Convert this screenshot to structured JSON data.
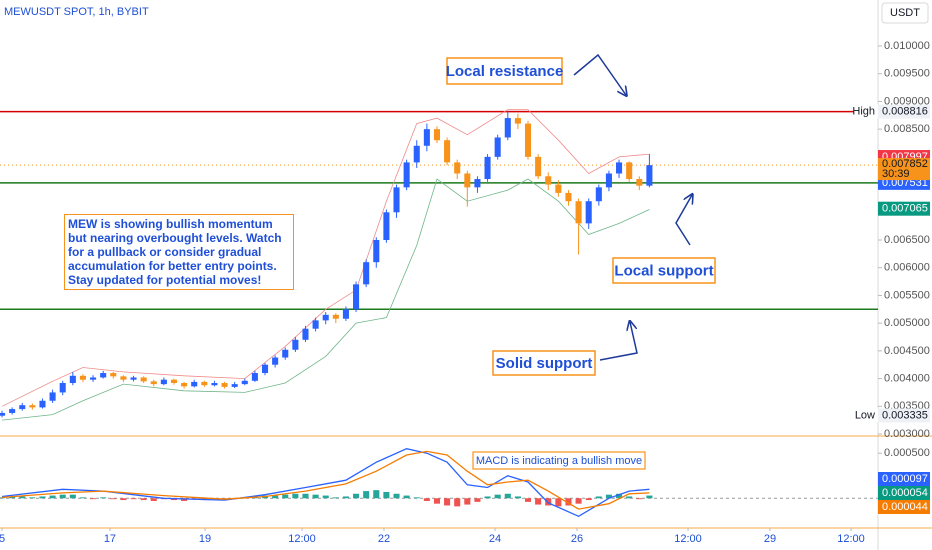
{
  "chart_data": {
    "type": "candlestick",
    "title": "MEWUSDT SPOT, 1h, BYBIT",
    "currency": "USDT",
    "up_color": "#2962ff",
    "down_color": "#f7931a",
    "xlim": [
      -0.2,
      86.6
    ],
    "xticks": [
      {
        "value": 0,
        "label": "5"
      },
      {
        "value": 10.67,
        "label": "17"
      },
      {
        "value": 20.07,
        "label": "19"
      },
      {
        "value": 29.66,
        "label": "12:00"
      },
      {
        "value": 37.76,
        "label": "22"
      },
      {
        "value": 48.74,
        "label": "24"
      },
      {
        "value": 56.84,
        "label": "26"
      },
      {
        "value": 67.82,
        "label": "12:00"
      },
      {
        "value": 75.92,
        "label": "29"
      },
      {
        "value": 83.93,
        "label": "12:00"
      }
    ],
    "ylim": [
      0.002964,
      0.01083
    ],
    "yticks": [
      {
        "value": 0.01,
        "label": "0.010000"
      },
      {
        "value": 0.0095,
        "label": "0.009500"
      },
      {
        "value": 0.009,
        "label": "0.009000"
      },
      {
        "value": 0.0085,
        "label": "0.008500"
      },
      {
        "value": 0.008,
        "label": "0.008000"
      },
      {
        "value": 0.0075,
        "label": "0.007500"
      },
      {
        "value": 0.007,
        "label": "0.007000"
      },
      {
        "value": 0.0065,
        "label": "0.006500"
      },
      {
        "value": 0.006,
        "label": "0.006000"
      },
      {
        "value": 0.0055,
        "label": "0.005500"
      },
      {
        "value": 0.005,
        "label": "0.005000"
      },
      {
        "value": 0.0045,
        "label": "0.004500"
      },
      {
        "value": 0.004,
        "label": "0.004000"
      },
      {
        "value": 0.0035,
        "label": "0.003500"
      },
      {
        "value": 0.003,
        "label": "0.003000"
      }
    ],
    "candles": [
      [
        0.00333,
        0.00342,
        0.0033,
        0.00338
      ],
      [
        0.00338,
        0.00348,
        0.00335,
        0.00345
      ],
      [
        0.00345,
        0.00356,
        0.00342,
        0.00352
      ],
      [
        0.00352,
        0.00355,
        0.00344,
        0.00348
      ],
      [
        0.00348,
        0.00364,
        0.00346,
        0.0036
      ],
      [
        0.0036,
        0.0038,
        0.00356,
        0.00375
      ],
      [
        0.00375,
        0.00396,
        0.0037,
        0.00392
      ],
      [
        0.00392,
        0.00412,
        0.00388,
        0.00405
      ],
      [
        0.00405,
        0.00408,
        0.00394,
        0.00398
      ],
      [
        0.00398,
        0.00406,
        0.00394,
        0.00402
      ],
      [
        0.00402,
        0.00414,
        0.004,
        0.0041
      ],
      [
        0.0041,
        0.00412,
        0.004,
        0.00404
      ],
      [
        0.00404,
        0.00406,
        0.00394,
        0.00398
      ],
      [
        0.00398,
        0.00405,
        0.00395,
        0.00402
      ],
      [
        0.00402,
        0.00404,
        0.00392,
        0.00395
      ],
      [
        0.00395,
        0.00398,
        0.00386,
        0.0039
      ],
      [
        0.0039,
        0.00402,
        0.00388,
        0.00398
      ],
      [
        0.00398,
        0.004,
        0.00389,
        0.00392
      ],
      [
        0.00392,
        0.00394,
        0.00382,
        0.00386
      ],
      [
        0.00386,
        0.00398,
        0.00384,
        0.00394
      ],
      [
        0.00394,
        0.00396,
        0.00385,
        0.00388
      ],
      [
        0.00388,
        0.00396,
        0.00386,
        0.00392
      ],
      [
        0.00392,
        0.00394,
        0.00382,
        0.00385
      ],
      [
        0.00385,
        0.00394,
        0.00383,
        0.0039
      ],
      [
        0.0039,
        0.004,
        0.00388,
        0.00396
      ],
      [
        0.00396,
        0.00414,
        0.00394,
        0.0041
      ],
      [
        0.0041,
        0.00428,
        0.00406,
        0.00425
      ],
      [
        0.00425,
        0.00442,
        0.0042,
        0.00438
      ],
      [
        0.00438,
        0.00456,
        0.00434,
        0.00452
      ],
      [
        0.00452,
        0.00475,
        0.00448,
        0.0047
      ],
      [
        0.0047,
        0.00495,
        0.00466,
        0.0049
      ],
      [
        0.0049,
        0.0051,
        0.00485,
        0.00505
      ],
      [
        0.00505,
        0.0052,
        0.00498,
        0.00515
      ],
      [
        0.00515,
        0.00518,
        0.005,
        0.00508
      ],
      [
        0.00508,
        0.0053,
        0.00504,
        0.00525
      ],
      [
        0.00525,
        0.00575,
        0.0052,
        0.0057
      ],
      [
        0.0057,
        0.00615,
        0.00565,
        0.0061
      ],
      [
        0.0061,
        0.00655,
        0.006,
        0.0065
      ],
      [
        0.0065,
        0.00705,
        0.00645,
        0.007
      ],
      [
        0.007,
        0.0075,
        0.0069,
        0.00745
      ],
      [
        0.00745,
        0.00795,
        0.0074,
        0.0079
      ],
      [
        0.0079,
        0.0083,
        0.0078,
        0.0082
      ],
      [
        0.0082,
        0.0086,
        0.0081,
        0.0085
      ],
      [
        0.0085,
        0.00855,
        0.00825,
        0.0083
      ],
      [
        0.0083,
        0.00835,
        0.00785,
        0.0079
      ],
      [
        0.0079,
        0.00795,
        0.0076,
        0.0077
      ],
      [
        0.0077,
        0.00775,
        0.0071,
        0.00745
      ],
      [
        0.00745,
        0.00765,
        0.00735,
        0.0076
      ],
      [
        0.0076,
        0.00805,
        0.00755,
        0.008
      ],
      [
        0.008,
        0.0084,
        0.00795,
        0.00835
      ],
      [
        0.00835,
        0.00882,
        0.0083,
        0.0087
      ],
      [
        0.0087,
        0.00878,
        0.0085,
        0.0086
      ],
      [
        0.0086,
        0.00865,
        0.00795,
        0.008
      ],
      [
        0.008,
        0.00805,
        0.0076,
        0.00765
      ],
      [
        0.00765,
        0.00772,
        0.0074,
        0.0075
      ],
      [
        0.0075,
        0.00758,
        0.00728,
        0.00735
      ],
      [
        0.00735,
        0.0074,
        0.00712,
        0.0072
      ],
      [
        0.0072,
        0.00725,
        0.00624,
        0.0068
      ],
      [
        0.0068,
        0.00725,
        0.0067,
        0.0072
      ],
      [
        0.0072,
        0.0075,
        0.00712,
        0.00745
      ],
      [
        0.00745,
        0.00775,
        0.00738,
        0.0077
      ],
      [
        0.0077,
        0.00795,
        0.00762,
        0.0079
      ],
      [
        0.0079,
        0.00792,
        0.00755,
        0.0076
      ],
      [
        0.0076,
        0.00765,
        0.0074,
        0.00748
      ],
      [
        0.00748,
        0.00805,
        0.00745,
        0.00785
      ]
    ],
    "bands": [
      {
        "color": "#f08a8a",
        "x": [
          0,
          5,
          8,
          12,
          18,
          24,
          28,
          32,
          35,
          38,
          41,
          43,
          46,
          50,
          52,
          55,
          58,
          61,
          64
        ],
        "values": [
          0.0035,
          0.00395,
          0.0042,
          0.00412,
          0.00405,
          0.004,
          0.00458,
          0.00525,
          0.0056,
          0.0072,
          0.0086,
          0.0087,
          0.0084,
          0.00885,
          0.00885,
          0.0083,
          0.0077,
          0.008,
          0.00805
        ]
      },
      {
        "color": "#6fb58a",
        "x": [
          0,
          5,
          8,
          12,
          18,
          24,
          28,
          32,
          35,
          38,
          41,
          43,
          46,
          50,
          52,
          55,
          58,
          61,
          64
        ],
        "values": [
          0.00325,
          0.00335,
          0.0036,
          0.0039,
          0.00378,
          0.00375,
          0.00392,
          0.0044,
          0.005,
          0.0051,
          0.0064,
          0.0076,
          0.0072,
          0.0074,
          0.0076,
          0.0072,
          0.0066,
          0.0068,
          0.00705
        ]
      }
    ],
    "levels": [
      {
        "value": 0.008816,
        "color": "#d50000"
      },
      {
        "value": 0.007531,
        "color": "#1b7a1b"
      },
      {
        "value": 0.00525,
        "color": "#1b7a1b"
      }
    ],
    "current_price": {
      "value": 0.007852,
      "label": "0.007852",
      "color": "#f7931a"
    },
    "countdown": "30:39",
    "price_labels": [
      {
        "value": 0.007997,
        "label": "0.007997",
        "color": "#f23645"
      },
      {
        "value": 0.007531,
        "label": "0.007531",
        "color": "#2962ff"
      },
      {
        "value": 0.007065,
        "label": "0.007065",
        "color": "#089981"
      }
    ],
    "high": {
      "name": "High",
      "value": 0.008816,
      "label": "0.008816"
    },
    "low": {
      "name": "Low",
      "value": 0.003335,
      "label": "0.003335"
    },
    "annotations": [
      "Local resistance",
      "Local support",
      "Solid support"
    ],
    "note": "MEW is showing bullish momentum but nearing overbought levels. Watch for a pullback or consider gradual accumulation for better entry points. Stay updated for potential moves!",
    "macd": {
      "annotation": "MACD is indicating a bullish move",
      "y2lim": [
        -0.00033,
        0.00068
      ],
      "y2ticks": [
        {
          "value": 0.0005,
          "label": "0.000500"
        }
      ],
      "histogram": [
        1e-05,
        2e-05,
        2e-05,
        1e-05,
        2e-05,
        3e-05,
        4e-05,
        4e-05,
        1e-05,
        -1e-05,
        1e-05,
        -1e-05,
        -2e-05,
        -1e-05,
        -2e-05,
        -3e-05,
        -1e-05,
        -2e-05,
        -3e-05,
        -1e-05,
        -2e-05,
        -1e-05,
        -2e-05,
        -1e-05,
        1e-05,
        2e-05,
        3e-05,
        3e-05,
        4e-05,
        5e-05,
        5e-05,
        4e-05,
        3e-05,
        1e-05,
        2e-05,
        5e-05,
        8e-05,
        9e-05,
        7e-05,
        5e-05,
        3e-05,
        1e-05,
        -3e-05,
        -6e-05,
        -8e-05,
        -9e-05,
        -7e-05,
        -4e-05,
        2e-05,
        4e-05,
        5e-05,
        2e-05,
        -4e-05,
        -7e-05,
        -8e-05,
        -9e-05,
        -8e-05,
        -6e-05,
        -2e-05,
        2e-05,
        4e-05,
        5e-05,
        2e-05,
        -1e-05,
        3e-05
      ],
      "hist_up_color": "#26a69a",
      "hist_down_color": "#ef5350",
      "lines": [
        {
          "color": "#2962ff",
          "x": [
            0,
            6,
            10,
            16,
            22,
            26,
            30,
            34,
            37,
            40,
            42,
            44,
            46,
            48,
            50,
            52,
            54,
            57,
            60,
            62,
            64
          ],
          "values": [
            2e-05,
            0.0001,
            8e-05,
            0.0,
            -2e-05,
            4e-05,
            0.00012,
            0.0002,
            0.0004,
            0.00055,
            0.0005,
            0.0004,
            0.00015,
            0.00012,
            0.00025,
            0.00018,
            -5e-05,
            -0.0002,
            0.0,
            8e-05,
            0.0001
          ]
        },
        {
          "color": "#f57c00",
          "x": [
            0,
            6,
            10,
            16,
            22,
            26,
            30,
            34,
            37,
            40,
            42,
            44,
            46,
            48,
            50,
            52,
            54,
            57,
            60,
            62,
            64
          ],
          "values": [
            1e-05,
            6e-05,
            8e-05,
            3e-05,
            -1e-05,
            2e-05,
            8e-05,
            0.00016,
            0.0003,
            0.00048,
            0.00052,
            0.00048,
            0.0003,
            0.00015,
            0.00018,
            0.0002,
            8e-05,
            -0.00012,
            -6e-05,
            5e-05,
            6e-05
          ]
        }
      ],
      "value_labels": [
        {
          "value": 9.7e-05,
          "label": "0.000097",
          "color": "#2962ff"
        },
        {
          "value": 5.4e-05,
          "label": "0.000054",
          "color": "#089981"
        },
        {
          "value": 4.4e-05,
          "label": "0.000044",
          "color": "#f57c00"
        }
      ]
    }
  }
}
